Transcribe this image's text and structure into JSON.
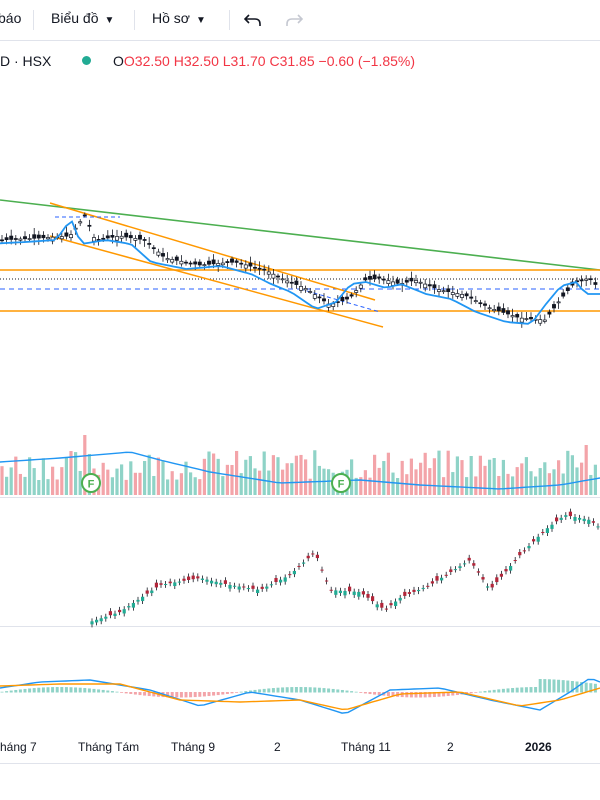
{
  "toolbar": {
    "report_fragment": "báo",
    "chart_menu": "Biểu đồ",
    "profile_menu": "Hồ sơ"
  },
  "legend": {
    "symbol": "D · HSX",
    "open": "O32.50",
    "high": "H32.50",
    "low": "L31.70",
    "close": "C31.85",
    "change": "−0.60 (−1.85%)"
  },
  "markers": [
    "F",
    "F"
  ],
  "x_labels": [
    "háng 7",
    "Tháng Tám",
    "Tháng 9",
    "2",
    "Tháng 11",
    "2",
    "2026"
  ],
  "colors": {
    "up": "#22ab94",
    "down": "#f23645",
    "ma": "#2196f3",
    "trend_green": "#4caf50",
    "channel_orange": "#ff9800",
    "macd_signal": "#ff9800"
  }
}
